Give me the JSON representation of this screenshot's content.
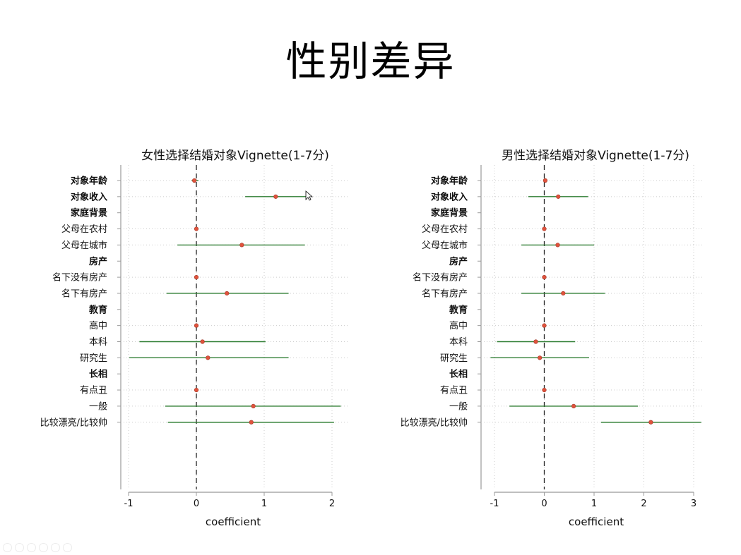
{
  "slide": {
    "title": "性别差异"
  },
  "chart_data": [
    {
      "type": "coefficient-plot",
      "title": "女性选择结婚对象Vignette(1-7分)",
      "xlabel": "coefficient",
      "xlim": [
        -1.1,
        2.25
      ],
      "xticks": [
        -1,
        0,
        1,
        2
      ],
      "reference_line": 0,
      "rows": [
        {
          "label": "对象年龄",
          "header": false,
          "bold": true,
          "estimate": -0.03,
          "ci": [
            -0.07,
            0.03
          ]
        },
        {
          "label": "对象收入",
          "header": false,
          "bold": true,
          "estimate": 1.17,
          "ci": [
            0.72,
            1.65
          ]
        },
        {
          "label": "家庭背景",
          "header": true
        },
        {
          "label": "父母在农村",
          "header": false,
          "estimate": 0.0,
          "ci": [
            0.0,
            0.0
          ]
        },
        {
          "label": "父母在城市",
          "header": false,
          "estimate": 0.67,
          "ci": [
            -0.28,
            1.6
          ]
        },
        {
          "label": "房产",
          "header": true
        },
        {
          "label": "名下没有房产",
          "header": false,
          "estimate": 0.0,
          "ci": [
            0.0,
            0.0
          ]
        },
        {
          "label": "名下有房产",
          "header": false,
          "estimate": 0.45,
          "ci": [
            -0.44,
            1.36
          ]
        },
        {
          "label": "教育",
          "header": true
        },
        {
          "label": "高中",
          "header": false,
          "estimate": 0.0,
          "ci": [
            0.0,
            0.0
          ]
        },
        {
          "label": "本科",
          "header": false,
          "estimate": 0.09,
          "ci": [
            -0.84,
            1.02
          ]
        },
        {
          "label": "研究生",
          "header": false,
          "estimate": 0.17,
          "ci": [
            -0.99,
            1.36
          ]
        },
        {
          "label": "长相",
          "header": true
        },
        {
          "label": "有点丑",
          "header": false,
          "estimate": 0.0,
          "ci": [
            0.0,
            0.0
          ]
        },
        {
          "label": "一般",
          "header": false,
          "estimate": 0.84,
          "ci": [
            -0.46,
            2.13
          ]
        },
        {
          "label": "比较漂亮/比较帅",
          "header": false,
          "estimate": 0.81,
          "ci": [
            -0.42,
            2.03
          ]
        }
      ]
    },
    {
      "type": "coefficient-plot",
      "title": "男性选择结婚对象Vignette(1-7分)",
      "xlabel": "coefficient",
      "xlim": [
        -1.1,
        3.25
      ],
      "xticks": [
        -1,
        0,
        1,
        2,
        3
      ],
      "reference_line": 0,
      "rows": [
        {
          "label": "对象年龄",
          "header": false,
          "bold": true,
          "estimate": 0.02,
          "ci": [
            -0.02,
            0.06
          ]
        },
        {
          "label": "对象收入",
          "header": false,
          "bold": true,
          "estimate": 0.28,
          "ci": [
            -0.32,
            0.88
          ]
        },
        {
          "label": "家庭背景",
          "header": true
        },
        {
          "label": "父母在农村",
          "header": false,
          "estimate": 0.0,
          "ci": [
            0.0,
            0.0
          ]
        },
        {
          "label": "父母在城市",
          "header": false,
          "estimate": 0.27,
          "ci": [
            -0.46,
            1.0
          ]
        },
        {
          "label": "房产",
          "header": true
        },
        {
          "label": "名下没有房产",
          "header": false,
          "estimate": 0.0,
          "ci": [
            0.0,
            0.0
          ]
        },
        {
          "label": "名下有房产",
          "header": false,
          "estimate": 0.38,
          "ci": [
            -0.46,
            1.22
          ]
        },
        {
          "label": "教育",
          "header": true
        },
        {
          "label": "高中",
          "header": false,
          "estimate": 0.0,
          "ci": [
            0.0,
            0.0
          ]
        },
        {
          "label": "本科",
          "header": false,
          "estimate": -0.17,
          "ci": [
            -0.95,
            0.62
          ]
        },
        {
          "label": "研究生",
          "header": false,
          "estimate": -0.09,
          "ci": [
            -1.08,
            0.9
          ]
        },
        {
          "label": "长相",
          "header": true
        },
        {
          "label": "有点丑",
          "header": false,
          "estimate": 0.0,
          "ci": [
            0.0,
            0.0
          ]
        },
        {
          "label": "一般",
          "header": false,
          "estimate": 0.59,
          "ci": [
            -0.7,
            1.88
          ]
        },
        {
          "label": "比较漂亮/比较帅",
          "header": false,
          "estimate": 2.14,
          "ci": [
            1.14,
            3.15
          ]
        }
      ]
    }
  ],
  "colors": {
    "ci_line": "#2e7d32",
    "point": "#e0523c",
    "point_edge": "#a33a2a",
    "grid": "#cccccc",
    "axis": "#999999"
  },
  "icons": {
    "cursor": "mouse-pointer-icon",
    "toolbar": [
      "prev-slide-icon",
      "next-slide-icon",
      "pen-icon",
      "slides-icon",
      "zoom-icon",
      "more-icon"
    ]
  }
}
